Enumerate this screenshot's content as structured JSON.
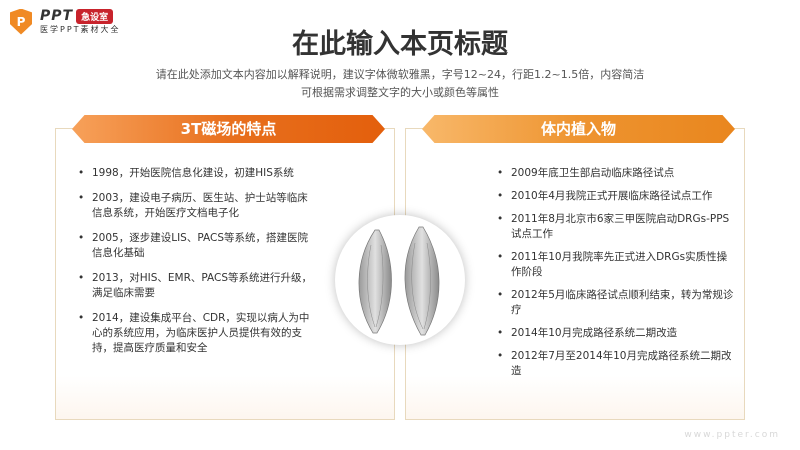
{
  "logo": {
    "mark": "P",
    "brand": "PPT",
    "badge": "急设室",
    "tagline": "医学PPT素材大全"
  },
  "title": "在此输入本页标题",
  "subtitle": [
    "请在此处添加文本内容加以解释说明，建议字体微软雅黑，字号12~24，行距1.2~1.5倍，内容简洁",
    "可根据需求调整文字的大小或颜色等属性"
  ],
  "left": {
    "heading": "3T磁场的特点",
    "items": [
      "1998，开始医院信息化建设，初建HIS系统",
      "2003，建设电子病历、医生站、护士站等临床信息系统，开始医疗文档电子化",
      "2005，逐步建设LIS、PACS等系统，搭建医院信息化基础",
      "2013，对HIS、EMR、PACS等系统进行升级，满足临床需要",
      "2014，建设集成平台、CDR，实现以病人为中心的系统应用，为临床医护人员提供有效的支持，提高医疗质量和安全"
    ]
  },
  "right": {
    "heading": "体内植入物",
    "items": [
      "2009年底卫生部启动临床路径试点",
      "2010年4月我院正式开展临床路径试点工作",
      "2011年8月北京市6家三甲医院启动DRGs-PPS试点工作",
      "2011年10月我院率先正式进入DRGs实质性操作阶段",
      "2012年5月临床路径试点顺利结束，转为常规诊疗",
      "2014年10月完成路径系统二期改造",
      "2012年7月至2014年10月完成路径系统二期改造"
    ]
  },
  "watermark": "www.ppter.com",
  "colors": {
    "accent": "#e8701e",
    "accent2": "#ee9430",
    "badge": "#c8232c"
  }
}
